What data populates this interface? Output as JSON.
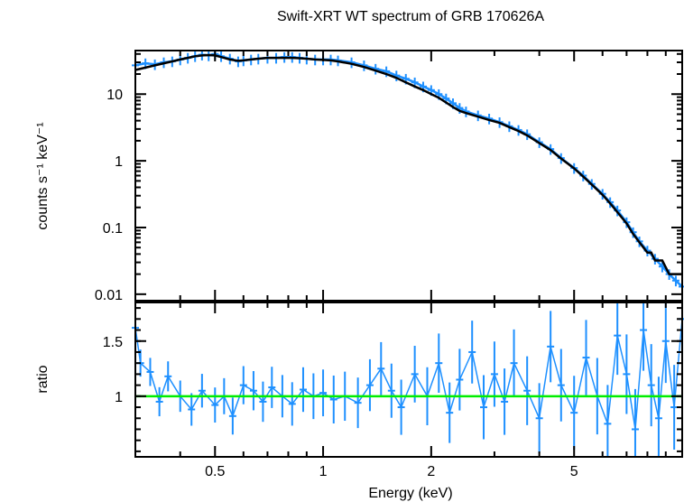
{
  "chart_data": [
    {
      "type": "line",
      "panel": "spectrum",
      "title": "Swift-XRT WT spectrum of GRB 170626A",
      "ylabel": "counts s⁻¹ keV⁻¹",
      "xscale": "log",
      "yscale": "log",
      "xlim": [
        0.3,
        10
      ],
      "ylim": [
        0.008,
        45
      ],
      "yticks": [
        0.01,
        0.1,
        1,
        10
      ],
      "ytick_labels": [
        "0.01",
        "0.1",
        "1",
        "10"
      ],
      "series": [
        {
          "kind": "data",
          "color": "#1e90ff",
          "x": [
            0.3,
            0.32,
            0.34,
            0.36,
            0.38,
            0.4,
            0.42,
            0.44,
            0.46,
            0.48,
            0.5,
            0.52,
            0.55,
            0.58,
            0.6,
            0.63,
            0.66,
            0.7,
            0.74,
            0.78,
            0.82,
            0.86,
            0.9,
            0.95,
            1.0,
            1.05,
            1.1,
            1.2,
            1.3,
            1.4,
            1.5,
            1.6,
            1.7,
            1.8,
            1.9,
            2.0,
            2.1,
            2.2,
            2.3,
            2.4,
            2.5,
            2.7,
            2.9,
            3.1,
            3.3,
            3.5,
            3.7,
            4.0,
            4.3,
            4.6,
            5.0,
            5.3,
            5.6,
            6.0,
            6.3,
            6.6,
            7.0,
            7.3,
            7.6,
            8.0,
            8.4,
            8.8,
            9.2,
            9.6,
            10.0
          ],
          "y": [
            27,
            29,
            28,
            30,
            31,
            33,
            35,
            37,
            39,
            38,
            40,
            37,
            34,
            31,
            32,
            33,
            34,
            35,
            35,
            36,
            36,
            35,
            34,
            33,
            33,
            33,
            32,
            30,
            27,
            24,
            22,
            19,
            17,
            15,
            13,
            11.5,
            10,
            8.6,
            7.3,
            6.2,
            5.5,
            4.8,
            4.3,
            3.8,
            3.3,
            2.9,
            2.5,
            1.9,
            1.5,
            1.1,
            0.78,
            0.6,
            0.45,
            0.32,
            0.24,
            0.18,
            0.12,
            0.085,
            0.062,
            0.045,
            0.034,
            0.026,
            0.02,
            0.016,
            0.013
          ]
        },
        {
          "kind": "model",
          "color": "#000000",
          "x": [
            0.3,
            0.32,
            0.34,
            0.36,
            0.38,
            0.4,
            0.42,
            0.44,
            0.46,
            0.48,
            0.5,
            0.52,
            0.55,
            0.58,
            0.6,
            0.63,
            0.66,
            0.7,
            0.74,
            0.78,
            0.82,
            0.86,
            0.9,
            0.95,
            1.0,
            1.05,
            1.1,
            1.2,
            1.3,
            1.4,
            1.5,
            1.6,
            1.7,
            1.8,
            1.9,
            2.0,
            2.1,
            2.2,
            2.3,
            2.4,
            2.5,
            2.7,
            2.9,
            3.1,
            3.3,
            3.5,
            3.7,
            4.0,
            4.3,
            4.6,
            5.0,
            5.3,
            5.6,
            6.0,
            6.3,
            6.6,
            7.0,
            7.3,
            7.6,
            8.0,
            8.2,
            8.4,
            8.8,
            9.2,
            9.6,
            10.0
          ],
          "y": [
            23,
            25,
            27,
            29,
            31,
            33,
            35,
            37,
            38,
            38.5,
            38,
            36,
            33,
            31.5,
            32,
            33,
            34,
            35,
            35,
            35,
            35,
            34.5,
            34,
            33,
            32.5,
            32,
            31,
            28.5,
            25.5,
            22.5,
            20,
            17.5,
            15,
            13,
            11.5,
            10,
            8.8,
            7.5,
            6.4,
            5.6,
            5.2,
            4.6,
            4.1,
            3.7,
            3.2,
            2.8,
            2.4,
            1.85,
            1.45,
            1.08,
            0.77,
            0.58,
            0.44,
            0.31,
            0.23,
            0.17,
            0.115,
            0.08,
            0.06,
            0.042,
            0.042,
            0.032,
            0.032,
            0.02,
            0.02,
            0.02
          ]
        }
      ]
    },
    {
      "type": "line",
      "panel": "ratio",
      "xlabel": "Energy (keV)",
      "ylabel": "ratio",
      "xscale": "log",
      "xlim": [
        0.3,
        10
      ],
      "ylim": [
        0.45,
        1.85
      ],
      "xticks": [
        0.5,
        1,
        2,
        5
      ],
      "xtick_labels": [
        "0.5",
        "1",
        "2",
        "5"
      ],
      "yticks": [
        1,
        1.5
      ],
      "ytick_labels": [
        "1",
        "1.5"
      ],
      "series": [
        {
          "kind": "data",
          "color": "#1e90ff",
          "x": [
            0.3,
            0.31,
            0.33,
            0.35,
            0.37,
            0.4,
            0.43,
            0.46,
            0.5,
            0.53,
            0.56,
            0.6,
            0.64,
            0.68,
            0.72,
            0.77,
            0.82,
            0.88,
            0.94,
            1.0,
            1.07,
            1.15,
            1.25,
            1.35,
            1.45,
            1.55,
            1.65,
            1.8,
            1.95,
            2.1,
            2.25,
            2.4,
            2.6,
            2.8,
            3.0,
            3.2,
            3.4,
            3.7,
            4.0,
            4.3,
            4.6,
            5.0,
            5.4,
            5.8,
            6.2,
            6.6,
            7.0,
            7.4,
            7.8,
            8.2,
            8.6,
            9.0,
            9.5,
            10.0
          ],
          "y": [
            1.62,
            1.3,
            1.22,
            0.95,
            1.18,
            1.0,
            0.88,
            1.05,
            0.92,
            1.0,
            0.82,
            1.1,
            1.05,
            0.95,
            1.08,
            1.0,
            0.93,
            1.06,
            1.0,
            1.03,
            0.97,
            1.0,
            0.94,
            1.1,
            1.25,
            1.05,
            0.9,
            1.2,
            1.0,
            1.3,
            0.85,
            1.15,
            1.4,
            0.9,
            1.2,
            0.95,
            1.3,
            1.05,
            0.8,
            1.45,
            1.1,
            0.85,
            1.35,
            1.0,
            0.75,
            1.55,
            1.2,
            0.7,
            1.6,
            1.1,
            0.8,
            1.5,
            0.9,
            1.7
          ]
        },
        {
          "kind": "unity",
          "color": "#00ee00",
          "x": [
            0.3,
            10
          ],
          "y": [
            1,
            1
          ]
        }
      ]
    }
  ]
}
